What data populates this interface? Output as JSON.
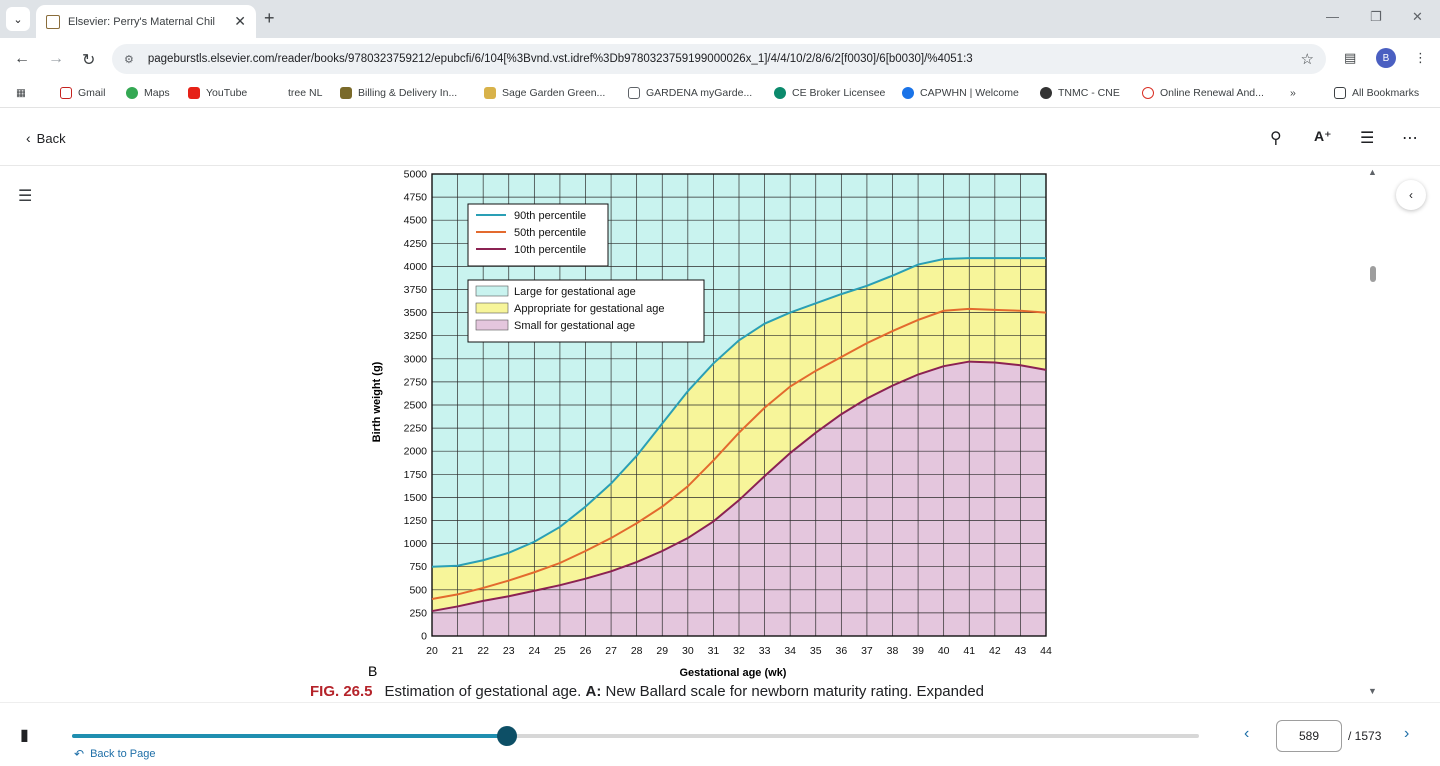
{
  "browser": {
    "tab_title": "Elsevier: Perry's Maternal Chil",
    "new_tab": "+",
    "url": "pageburstls.elsevier.com/reader/books/9780323759212/epubcfi/6/104[%3Bvnd.vst.idref%3Db9780323759199000026x_1]/4/4/10/2/8/6/2[f0030]/6[b0030]/%4051:3",
    "bookmarks": [
      "Gmail",
      "Maps",
      "YouTube",
      "tree NL",
      "Billing & Delivery In...",
      "Sage Garden Green...",
      "GARDENA myGarde...",
      "CE Broker Licensee",
      "CAPWHN | Welcome",
      "TNMC - CNE",
      "Online Renewal And..."
    ],
    "all_bookmarks": "All Bookmarks",
    "more_bookmarks": "»",
    "profile_initial": "B"
  },
  "reader": {
    "back_label": "Back",
    "figure_letter": "B",
    "caption": {
      "fig_num": "FIG. 26.5",
      "text_before": "Estimation of gestational age. ",
      "bold_letter": "A:",
      "text_after": " New Ballard scale for newborn maturity rating. Expanded"
    },
    "page_current": "589",
    "page_total": "/ 1573",
    "back_to_page": "Back to Page",
    "progress": 0.386
  },
  "chart_data": {
    "type": "area",
    "xlabel": "Gestational age (wk)",
    "ylabel": "Birth weight (g)",
    "xlim": [
      20,
      44
    ],
    "ylim": [
      0,
      5000
    ],
    "x_ticks": [
      20,
      21,
      22,
      23,
      24,
      25,
      26,
      27,
      28,
      29,
      30,
      31,
      32,
      33,
      34,
      35,
      36,
      37,
      38,
      39,
      40,
      41,
      42,
      43,
      44
    ],
    "y_ticks": [
      0,
      250,
      500,
      750,
      1000,
      1250,
      1500,
      1750,
      2000,
      2250,
      2500,
      2750,
      3000,
      3250,
      3500,
      3750,
      4000,
      4250,
      4500,
      4750,
      5000
    ],
    "grid": true,
    "x": [
      20,
      21,
      22,
      23,
      24,
      25,
      26,
      27,
      28,
      29,
      30,
      31,
      32,
      33,
      34,
      35,
      36,
      37,
      38,
      39,
      40,
      41,
      42,
      43,
      44
    ],
    "series": [
      {
        "name": "90th percentile",
        "color": "#2a9fb5",
        "values": [
          750,
          760,
          820,
          900,
          1020,
          1180,
          1400,
          1650,
          1950,
          2300,
          2650,
          2950,
          3200,
          3380,
          3500,
          3600,
          3700,
          3790,
          3900,
          4020,
          4080,
          4090,
          4090,
          4090,
          4090
        ]
      },
      {
        "name": "50th percentile",
        "color": "#e36a2e",
        "values": [
          400,
          450,
          520,
          600,
          690,
          790,
          920,
          1060,
          1220,
          1400,
          1620,
          1900,
          2200,
          2470,
          2700,
          2870,
          3020,
          3170,
          3300,
          3420,
          3520,
          3540,
          3530,
          3520,
          3500
        ]
      },
      {
        "name": "10th percentile",
        "color": "#8b2252",
        "values": [
          270,
          320,
          380,
          430,
          490,
          550,
          620,
          700,
          800,
          920,
          1060,
          1240,
          1470,
          1730,
          1980,
          2200,
          2400,
          2570,
          2710,
          2830,
          2920,
          2970,
          2960,
          2930,
          2880
        ]
      }
    ],
    "zones": [
      {
        "name": "Large for gestational age",
        "color": "#c9f3ef"
      },
      {
        "name": "Appropriate for gestational age",
        "color": "#f7f59a"
      },
      {
        "name": "Small for gestational age",
        "color": "#e4c6dd"
      }
    ],
    "legend_placement": "top-left"
  }
}
